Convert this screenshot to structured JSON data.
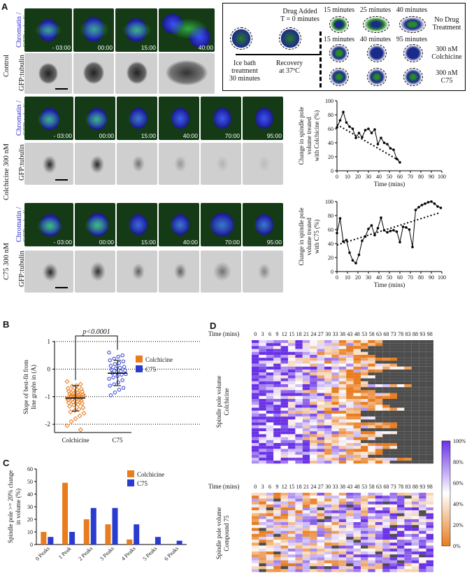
{
  "panel_labels": {
    "a": "A",
    "b": "B",
    "c": "C",
    "d": "D"
  },
  "panel_a": {
    "rows": [
      {
        "name": "Control",
        "channels": [
          "Chromatin /",
          "GFP:tubulin"
        ],
        "gray_label": "GFP:tubulin",
        "timepoints": [
          "- 03:00",
          "00:00",
          "15:00",
          "40:00"
        ]
      },
      {
        "name": "Colchicine 300 nM",
        "channels": [
          "Chromatin /",
          "GFP:tubulin"
        ],
        "gray_label": "GFP:tubulin",
        "timepoints": [
          "- 03:00",
          "00:00",
          "15:00",
          "40:00",
          "70:00",
          "95:00"
        ]
      },
      {
        "name": "C75 300 nM",
        "channels": [
          "Chromatin /",
          "GFP:tubulin"
        ],
        "gray_label": "GFP:tubulin",
        "timepoints": [
          "- 03:00",
          "00:00",
          "15:00",
          "40:00",
          "70:00",
          "95:00"
        ]
      }
    ],
    "schematic": {
      "drug_added": "Drug Added",
      "t0": "T = 0 minutes",
      "ice_bath": "Ice bath",
      "treatment": "treatment",
      "minutes30": "30 minutes",
      "recovery": "Recovery",
      "at37": "at 37ºC",
      "tracks": [
        {
          "times": [
            "15 minutes",
            "25 minutes",
            "40 minutes"
          ],
          "label": [
            "No Drug",
            "Treatment"
          ]
        },
        {
          "times": [
            "15 minutes",
            "40 minutes",
            "95 minutes"
          ],
          "label": [
            "300 nM",
            "Colchicine"
          ]
        },
        {
          "times": [
            "",
            "",
            ""
          ],
          "label": [
            "300 nM",
            "C75"
          ]
        }
      ]
    }
  },
  "chart_data": [
    {
      "type": "line",
      "title": "",
      "ylabel": [
        "Change in spindle pole",
        "volume treated",
        "with Colchicine (%)"
      ],
      "xlabel": "Time (mins)",
      "xlim": [
        0,
        100
      ],
      "ylim": [
        0,
        100
      ],
      "xticks": [
        0,
        10,
        20,
        30,
        40,
        50,
        60,
        70,
        80,
        90,
        100
      ],
      "yticks": [
        0,
        20,
        40,
        60,
        80,
        100
      ],
      "x": [
        0,
        3,
        6,
        9,
        12,
        15,
        18,
        21,
        24,
        27,
        30,
        33,
        36,
        39,
        42,
        45,
        48,
        51,
        54,
        57,
        60
      ],
      "y": [
        62,
        72,
        84,
        69,
        63,
        60,
        47,
        54,
        48,
        58,
        60,
        54,
        59,
        38,
        47,
        40,
        38,
        32,
        30,
        17,
        12
      ],
      "trend": {
        "x": [
          0,
          60
        ],
        "y": [
          66,
          14
        ]
      }
    },
    {
      "type": "line",
      "title": "",
      "ylabel": [
        "Change in spindle pole",
        "volume treated",
        "with C75 (%)"
      ],
      "xlabel": "Time (mins)",
      "xlim": [
        0,
        100
      ],
      "ylim": [
        0,
        100
      ],
      "xticks": [
        0,
        10,
        20,
        30,
        40,
        50,
        60,
        70,
        80,
        90,
        100
      ],
      "yticks": [
        0,
        20,
        40,
        60,
        80,
        100
      ],
      "x": [
        0,
        3,
        6,
        9,
        12,
        15,
        18,
        21,
        24,
        27,
        30,
        33,
        36,
        39,
        42,
        45,
        48,
        51,
        54,
        57,
        60,
        63,
        66,
        69,
        72,
        75,
        78,
        81,
        84,
        87,
        90,
        93,
        96,
        99
      ],
      "y": [
        55,
        76,
        43,
        45,
        27,
        16,
        12,
        24,
        44,
        50,
        61,
        66,
        52,
        62,
        77,
        59,
        56,
        58,
        59,
        57,
        42,
        64,
        63,
        60,
        35,
        88,
        92,
        95,
        97,
        99,
        100,
        97,
        93,
        91
      ],
      "trend": {
        "x": [
          0,
          98
        ],
        "y": [
          38,
          84
        ]
      }
    },
    {
      "type": "scatter",
      "title": "",
      "ylabel": [
        "Slope of best-fit from",
        "line graphs in (A)"
      ],
      "xlabel": "",
      "categories": [
        "Colchicine",
        "C75"
      ],
      "ylim": [
        -2.3,
        1
      ],
      "yticks": [
        -2,
        -1,
        0,
        1
      ],
      "significance": "p<0.0001",
      "legend": [
        "Colchicine",
        "C75"
      ],
      "series": [
        {
          "name": "Colchicine",
          "mean": -1.05,
          "sd_low": -1.52,
          "sd_high": -0.6,
          "values": [
            -0.45,
            -0.55,
            -0.6,
            -0.62,
            -0.7,
            -0.72,
            -0.75,
            -0.78,
            -0.8,
            -0.82,
            -0.85,
            -0.88,
            -0.9,
            -0.92,
            -0.93,
            -0.95,
            -0.97,
            -0.98,
            -1.0,
            -1.0,
            -1.02,
            -1.05,
            -1.07,
            -1.08,
            -1.1,
            -1.12,
            -1.15,
            -1.18,
            -1.2,
            -1.22,
            -1.25,
            -1.28,
            -1.3,
            -1.35,
            -1.4,
            -1.45,
            -1.5,
            -1.55,
            -1.6,
            -1.7,
            -1.8,
            -1.9,
            -2.05,
            -2.2
          ]
        },
        {
          "name": "C75",
          "mean": -0.15,
          "sd_low": -0.6,
          "sd_high": 0.32,
          "values": [
            0.6,
            0.5,
            0.45,
            0.38,
            0.32,
            0.28,
            0.22,
            0.18,
            0.12,
            0.08,
            0.05,
            0.02,
            -0.02,
            -0.05,
            -0.08,
            -0.12,
            -0.15,
            -0.18,
            -0.2,
            -0.25,
            -0.3,
            -0.35,
            -0.4,
            -0.48,
            -0.55,
            -0.6,
            -0.68,
            -0.75,
            -0.85,
            -0.95
          ]
        }
      ]
    },
    {
      "type": "bar",
      "title": "",
      "ylabel": [
        "Spindle pole >= 20% change",
        "in volume (%)"
      ],
      "xlabel": "",
      "categories": [
        "0 Peaks",
        "1 Peak",
        "2 Peaks",
        "3 Peaks",
        "4 Peaks",
        "5 Peaks",
        "6 Peaks"
      ],
      "ylim": [
        0,
        60
      ],
      "yticks": [
        0,
        10,
        20,
        30,
        40,
        50,
        60
      ],
      "series": [
        {
          "name": "Colchicine",
          "values": [
            10,
            49,
            20,
            16,
            4,
            0,
            0
          ]
        },
        {
          "name": "C75",
          "values": [
            6,
            10,
            29,
            29,
            16,
            6,
            3
          ]
        }
      ]
    },
    {
      "type": "heatmap",
      "title": "Spindle pole volume Colchicine",
      "xlabel": "Time (mins)",
      "x": [
        0,
        3,
        6,
        9,
        12,
        15,
        18,
        21,
        24,
        27,
        30,
        33,
        38,
        43,
        48,
        53,
        58,
        63,
        68,
        73,
        78,
        83,
        88,
        93,
        98
      ],
      "ylabel": [
        "Spindle pole volume",
        "Colchicine"
      ],
      "rows": 42
    },
    {
      "type": "heatmap",
      "title": "Spindle pole volume Compound 75",
      "xlabel": "Time (mins)",
      "x": [
        0,
        3,
        6,
        9,
        12,
        15,
        18,
        21,
        24,
        27,
        30,
        33,
        38,
        43,
        48,
        53,
        58,
        63,
        68,
        73,
        78,
        83,
        88,
        93,
        98
      ],
      "ylabel": [
        "Spindle pole volume",
        "Compound 75"
      ],
      "rows": 27,
      "colorbar": [
        "100%",
        "80%",
        "60%",
        "40%",
        "20%",
        "0%"
      ]
    }
  ],
  "colors": {
    "colchicine": "#e87c1e",
    "c75": "#2a3bcf",
    "chromatin": "#2626d8",
    "tubulin": "#1a9a2a",
    "missing": "#4d4d4d"
  }
}
